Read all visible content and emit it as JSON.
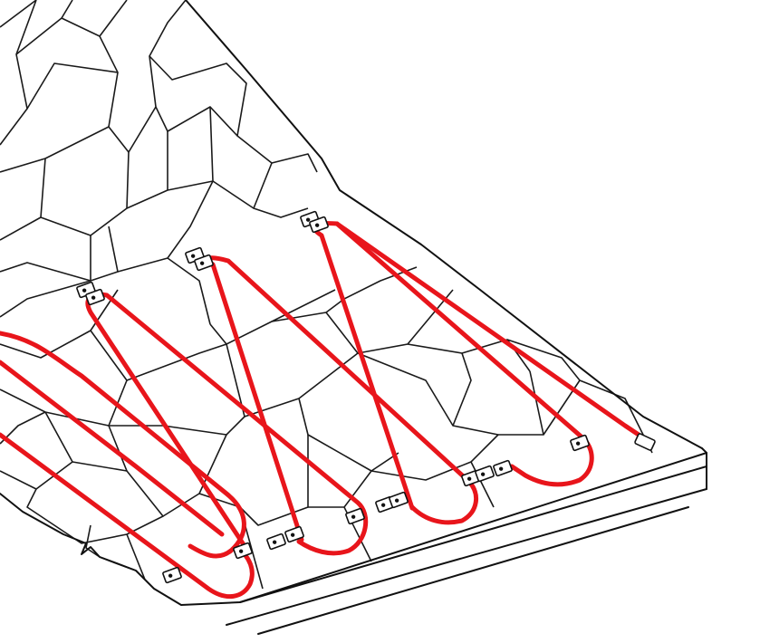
{
  "diagram": {
    "subject": "heating-cable-on-stone-tile-roof",
    "colors": {
      "cable": "#e8151b",
      "lines": "#111111",
      "background": "#ffffff"
    },
    "cable_runs": 5,
    "clip_count": 17
  }
}
